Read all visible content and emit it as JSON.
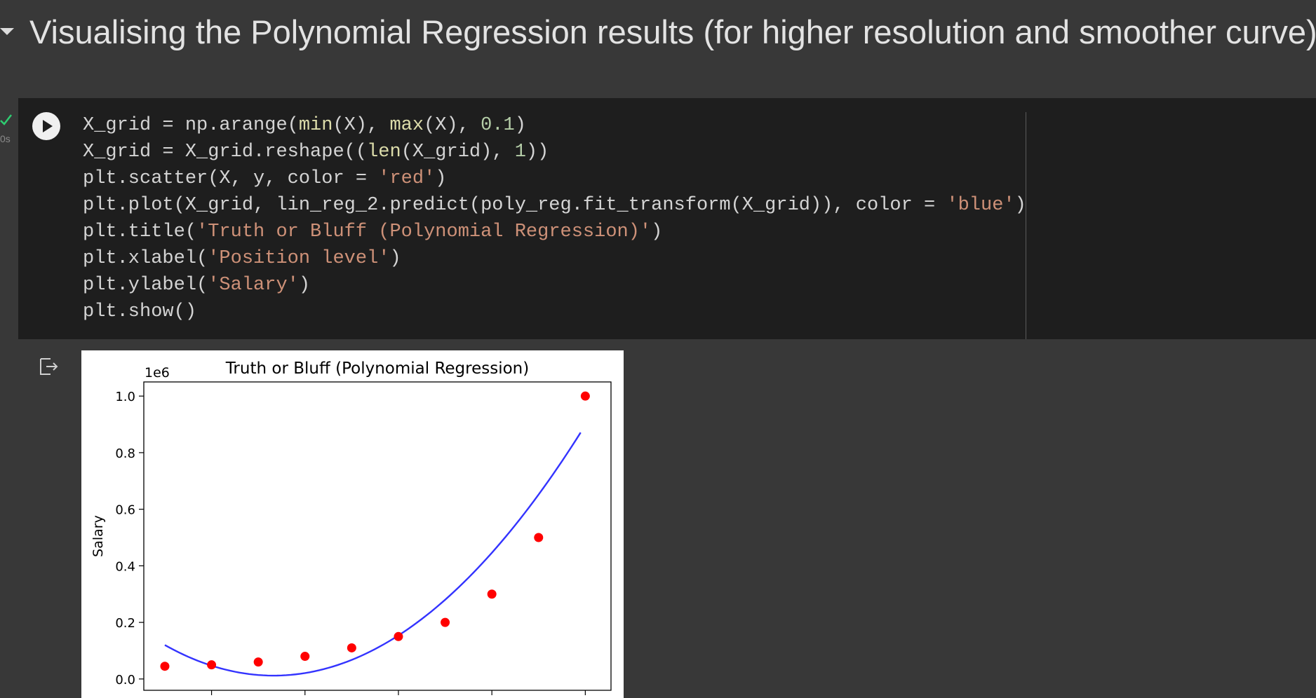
{
  "header": {
    "title": "Visualising the Polynomial Regression results (for higher resolution and smoother curve)"
  },
  "cell": {
    "exec_time": "0s",
    "code_lines": [
      [
        {
          "t": "X_grid = np.arange(",
          "c": ""
        },
        {
          "t": "min",
          "c": "kw-fn"
        },
        {
          "t": "(X), ",
          "c": ""
        },
        {
          "t": "max",
          "c": "kw-fn"
        },
        {
          "t": "(X), ",
          "c": ""
        },
        {
          "t": "0.1",
          "c": "num"
        },
        {
          "t": ")",
          "c": ""
        }
      ],
      [
        {
          "t": "X_grid = X_grid.reshape((",
          "c": ""
        },
        {
          "t": "len",
          "c": "kw-fn"
        },
        {
          "t": "(X_grid), ",
          "c": ""
        },
        {
          "t": "1",
          "c": "num"
        },
        {
          "t": "))",
          "c": ""
        }
      ],
      [
        {
          "t": "plt.scatter(X, y, color = ",
          "c": ""
        },
        {
          "t": "'red'",
          "c": "str"
        },
        {
          "t": ")",
          "c": ""
        }
      ],
      [
        {
          "t": "plt.plot(X_grid, lin_reg_2.predict(poly_reg.fit_transform(X_grid)), color = ",
          "c": ""
        },
        {
          "t": "'blue'",
          "c": "str"
        },
        {
          "t": ")",
          "c": ""
        }
      ],
      [
        {
          "t": "plt.title(",
          "c": ""
        },
        {
          "t": "'Truth or Bluff (Polynomial Regression)'",
          "c": "str"
        },
        {
          "t": ")",
          "c": ""
        }
      ],
      [
        {
          "t": "plt.xlabel(",
          "c": ""
        },
        {
          "t": "'Position level'",
          "c": "str"
        },
        {
          "t": ")",
          "c": ""
        }
      ],
      [
        {
          "t": "plt.ylabel(",
          "c": ""
        },
        {
          "t": "'Salary'",
          "c": "str"
        },
        {
          "t": ")",
          "c": ""
        }
      ],
      [
        {
          "t": "plt.show()",
          "c": ""
        }
      ]
    ]
  },
  "chart_data": {
    "type": "scatter",
    "title": "Truth or Bluff (Polynomial Regression)",
    "ylabel": "Salary",
    "y_offset_label": "1e6",
    "ylim": [
      -0.04,
      1.05
    ],
    "xlim": [
      0.55,
      10.55
    ],
    "y_ticks": [
      0.0,
      0.2,
      0.4,
      0.6,
      0.8,
      1.0
    ],
    "y_tick_labels": [
      "0.0",
      "0.2",
      "0.4",
      "0.6",
      "0.8",
      "1.0"
    ],
    "x_ticks": [
      2,
      4,
      6,
      8,
      10
    ],
    "points": {
      "color": "#ff0000",
      "x": [
        1,
        2,
        3,
        4,
        5,
        6,
        7,
        8,
        9,
        10
      ],
      "y": [
        0.045,
        0.05,
        0.06,
        0.08,
        0.11,
        0.15,
        0.2,
        0.3,
        0.5,
        1.0
      ]
    },
    "curve": {
      "color": "#0000ff",
      "coefficients": [
        0.2325,
        -0.1325,
        0.0199
      ],
      "x_start": 1.0,
      "x_end": 9.9,
      "x_step": 0.1
    },
    "grid": false
  },
  "icons": {
    "run": "play-icon",
    "output": "output-icon",
    "check": "checkmark-icon",
    "collapse": "triangle-down-icon"
  }
}
